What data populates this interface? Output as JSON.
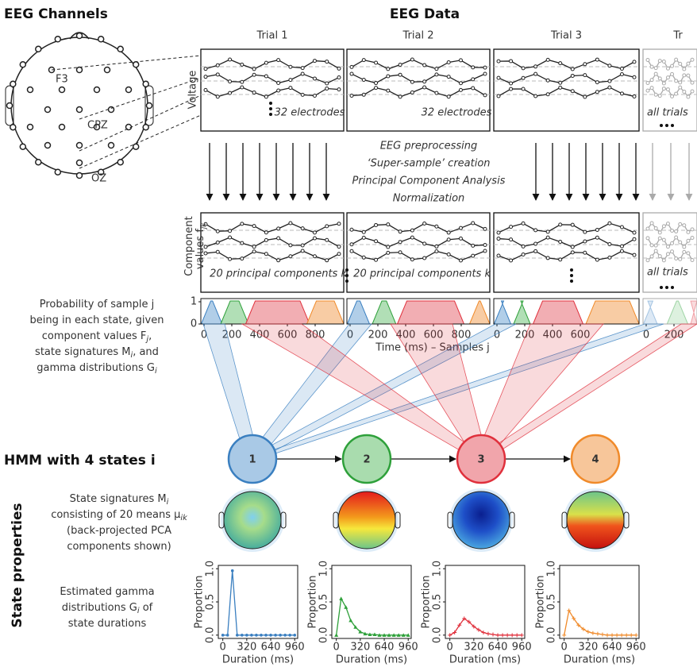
{
  "channels": {
    "title": "EEG Channels",
    "labels": [
      "F3",
      "CPZ",
      "OZ"
    ]
  },
  "eeg": {
    "title": "EEG Data",
    "trials": [
      "Trial 1",
      "Trial 2",
      "Trial 3",
      "Tr"
    ],
    "voltage_label": "Voltage",
    "raw_notes": [
      "32 electrodes",
      "32 electrodes",
      "all trials"
    ],
    "steps": [
      "EEG preprocessing",
      "‘Super-sample’ creation",
      "Principal Component Analysis",
      "Normalization"
    ],
    "component_label": [
      [
        "Component"
      ],
      [
        "values f",
        "jk"
      ]
    ],
    "pc_notes": [
      "20 principal components k",
      "20 principal components k",
      "all trials"
    ]
  },
  "probability": {
    "description": [
      [
        "Probability of sample j"
      ],
      [
        "being in each state, given"
      ],
      [
        "component values F",
        "j",
        ","
      ],
      [
        "state signatures M",
        "i",
        ", and"
      ],
      [
        "gamma distributions G",
        "i"
      ]
    ],
    "yticks": [
      0,
      1
    ],
    "xticks": [
      [
        0,
        200,
        400,
        600,
        800
      ],
      [
        0,
        200,
        400,
        600,
        800
      ],
      [
        0,
        200,
        400,
        600
      ],
      [
        0,
        200
      ]
    ],
    "xlabel": "Time (ms) – Samples j"
  },
  "hmm": {
    "title": "HMM with 4 states i",
    "states": [
      1,
      2,
      3,
      4
    ]
  },
  "properties": {
    "title": "State properties",
    "signature_text": [
      [
        "State signatures M",
        "i"
      ],
      [
        "consisting of 20 means μ",
        "ik"
      ],
      [
        "(back-projected PCA"
      ],
      [
        "components shown)"
      ]
    ],
    "gamma_text": [
      [
        "Estimated gamma"
      ],
      [
        "distributions G",
        "i",
        " of"
      ],
      [
        "state durations"
      ]
    ]
  },
  "gamma": {
    "xlabel": "Duration (ms)",
    "ylabel": "Proportion",
    "xlim": [
      -60,
      1000
    ],
    "ylim": [
      -0.05,
      1.05
    ],
    "xticks": [
      0,
      320,
      640,
      960
    ],
    "yticks": [
      {
        "value": 0,
        "label": "0.0"
      },
      {
        "value": 0.5,
        "label": "0.5"
      },
      {
        "value": 1,
        "label": "1.0"
      }
    ],
    "x": [
      0,
      64,
      128,
      192,
      256,
      320,
      384,
      448,
      512,
      576,
      640,
      704,
      768,
      832,
      896,
      960
    ],
    "series": [
      {
        "color": "#3a7fc0",
        "marker": "circle",
        "values": [
          0,
          0,
          0.97,
          0,
          0,
          0,
          0,
          0,
          0,
          0,
          0,
          0,
          0,
          0,
          0,
          0
        ]
      },
      {
        "color": "#2ea03a",
        "marker": "triangle",
        "values": [
          0,
          0.55,
          0.42,
          0.22,
          0.12,
          0.05,
          0.02,
          0.01,
          0.01,
          0,
          0,
          0,
          0,
          0,
          0,
          0
        ]
      },
      {
        "color": "#e0303c",
        "marker": "plus",
        "values": [
          0,
          0.04,
          0.15,
          0.25,
          0.2,
          0.13,
          0.08,
          0.04,
          0.02,
          0.01,
          0,
          0,
          0,
          0,
          0,
          0
        ]
      },
      {
        "color": "#f08a2a",
        "marker": "plus",
        "values": [
          0,
          0.37,
          0.25,
          0.15,
          0.09,
          0.05,
          0.03,
          0.02,
          0.01,
          0,
          0,
          0,
          0,
          0,
          0,
          0
        ]
      }
    ]
  }
}
